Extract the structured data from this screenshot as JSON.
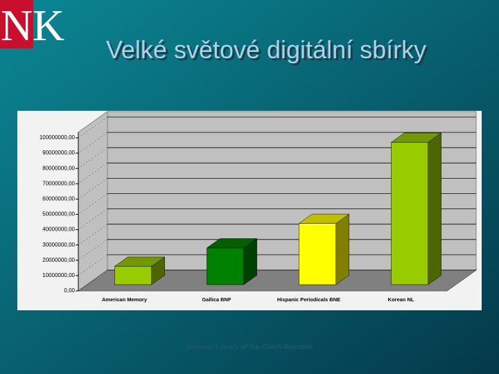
{
  "slide": {
    "logo": [
      "N",
      "K"
    ],
    "title": "Velké světové digitální sbírky",
    "footer": "National Library of the Czech Republic"
  },
  "chart_data": {
    "type": "bar3d",
    "categories": [
      "American Memory",
      "Gallica BNF",
      "Hispanic Periodicals BNE",
      "Korean NL"
    ],
    "values": [
      12000000,
      24000000,
      40000000,
      93000000
    ],
    "colors": [
      "#99cc00",
      "#008000",
      "#ffff00",
      "#99cc00"
    ],
    "ylim": [
      0,
      100000000
    ],
    "yticks": [
      {
        "value": 0,
        "label": "0,00"
      },
      {
        "value": 10000000,
        "label": "10000000,00"
      },
      {
        "value": 20000000,
        "label": "20000000,00"
      },
      {
        "value": 30000000,
        "label": "30000000,00"
      },
      {
        "value": 40000000,
        "label": "40000000,00"
      },
      {
        "value": 50000000,
        "label": "50000000,00"
      },
      {
        "value": 60000000,
        "label": "60000000,00"
      },
      {
        "value": 70000000,
        "label": "70000000,00"
      },
      {
        "value": 80000000,
        "label": "80000000,00"
      },
      {
        "value": 90000000,
        "label": "90000000,00"
      },
      {
        "value": 100000000,
        "label": "100000000,00"
      }
    ],
    "grid": true
  }
}
